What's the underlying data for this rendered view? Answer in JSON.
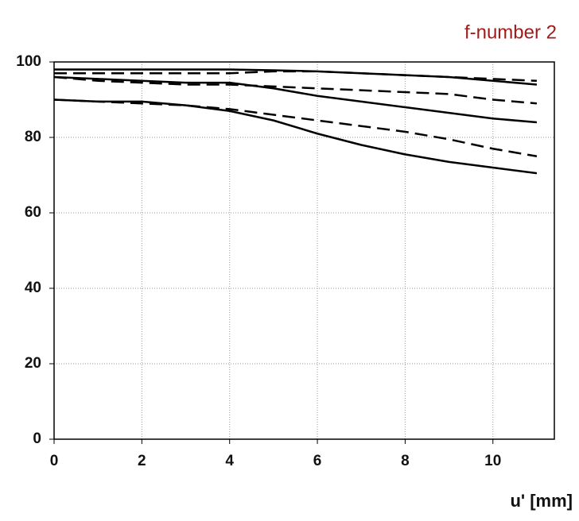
{
  "chart_data": {
    "type": "line",
    "title": "f-number 2",
    "x_label": "u' [mm]",
    "x": [
      0,
      1,
      2,
      3,
      4,
      5,
      6,
      7,
      8,
      9,
      10,
      11
    ],
    "series": [
      {
        "color": "#000000",
        "style": "solid",
        "values": [
          98,
          98,
          98,
          98,
          98,
          97.8,
          97.5,
          97,
          96.5,
          96,
          95,
          94
        ]
      },
      {
        "color": "#000000",
        "style": "dashed",
        "values": [
          97,
          97,
          97,
          97,
          97,
          97.5,
          97.5,
          97,
          96.5,
          96,
          95.5,
          95
        ]
      },
      {
        "color": "#000000",
        "style": "solid",
        "values": [
          96,
          95.5,
          95,
          94.5,
          94.5,
          93,
          91,
          89.5,
          88,
          86.5,
          85,
          84
        ]
      },
      {
        "color": "#000000",
        "style": "dashed",
        "values": [
          96,
          95,
          94.5,
          94,
          94,
          93.5,
          93,
          92.5,
          92,
          91.5,
          90,
          89
        ]
      },
      {
        "color": "#000000",
        "style": "solid",
        "values": [
          90,
          89.5,
          89.5,
          88.5,
          87,
          84.5,
          81,
          78,
          75.5,
          73.5,
          72,
          70.5
        ]
      },
      {
        "color": "#000000",
        "style": "dashed",
        "values": [
          90,
          89.5,
          89,
          88.5,
          87.5,
          86,
          84.5,
          83,
          81.5,
          79.5,
          77,
          75
        ]
      }
    ],
    "xlim": [
      0,
      11.4
    ],
    "xticks": [
      0,
      2,
      4,
      6,
      8,
      10
    ],
    "ylim": [
      0,
      100
    ],
    "yticks": [
      0,
      20,
      40,
      60,
      80,
      100
    ],
    "grid": true
  }
}
